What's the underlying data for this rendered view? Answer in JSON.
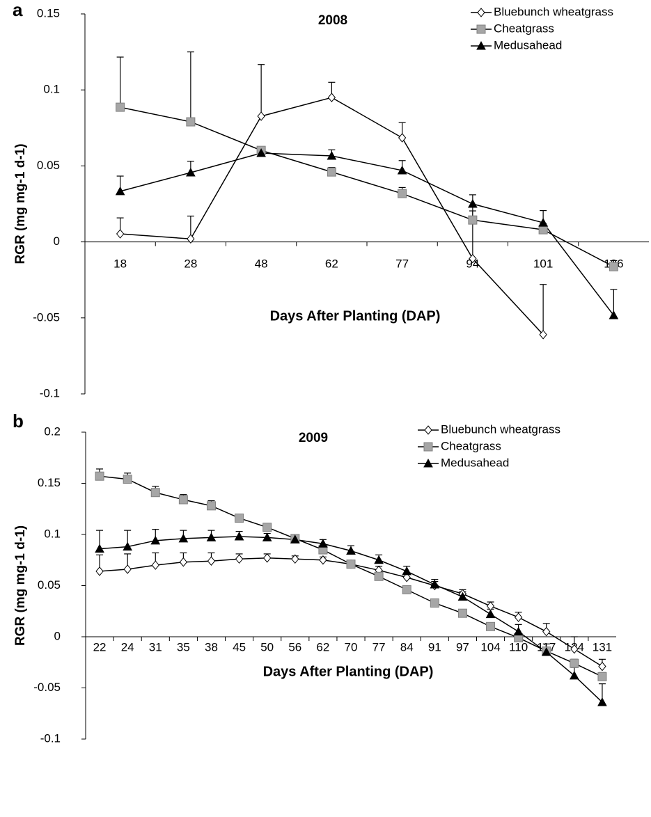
{
  "chart_data": [
    {
      "type": "line",
      "panel": "a",
      "title": "2008",
      "xlabel": "Days After Planting (DAP)",
      "ylabel": "RGR (mg mg-1 d-1)",
      "categories": [
        "18",
        "28",
        "48",
        "62",
        "77",
        "94",
        "101",
        "126"
      ],
      "ylim": [
        -0.1,
        0.15
      ],
      "yticks": [
        -0.1,
        -0.05,
        0,
        0.05,
        0.1,
        0.15
      ],
      "legend": "upper right",
      "series": [
        {
          "name": "Bluebunch wheatgrass",
          "color": "#ffffff",
          "marker": "diamond",
          "values": [
            0.0053,
            0.002,
            0.0827,
            0.095,
            0.0685,
            -0.011,
            -0.061,
            null
          ],
          "errors": [
            0.0105,
            0.015,
            0.034,
            0.01,
            0.01,
            0.034,
            0.033,
            null
          ]
        },
        {
          "name": "Cheatgrass",
          "color": "#a6a6a6",
          "marker": "square",
          "values": [
            0.0886,
            0.079,
            0.0602,
            0.046,
            0.0318,
            0.0144,
            0.008,
            -0.0163
          ],
          "errors": [
            0.033,
            0.046,
            0.002,
            0.003,
            0.004,
            0.006,
            0.004,
            0.004
          ]
        },
        {
          "name": "Medusahead",
          "color": "#000000",
          "marker": "triangle",
          "values": [
            0.0333,
            0.0456,
            0.0584,
            0.0566,
            0.047,
            0.025,
            0.0126,
            -0.0483
          ],
          "errors": [
            0.01,
            0.0075,
            0.002,
            0.004,
            0.0065,
            0.006,
            0.008,
            0.017
          ]
        }
      ]
    },
    {
      "type": "line",
      "panel": "b",
      "title": "2009",
      "xlabel": "Days After Planting (DAP)",
      "ylabel": "RGR (mg mg-1 d-1)",
      "categories": [
        "22",
        "24",
        "31",
        "35",
        "38",
        "45",
        "50",
        "56",
        "62",
        "70",
        "77",
        "84",
        "91",
        "97",
        "104",
        "110",
        "117",
        "124",
        "131"
      ],
      "ylim": [
        -0.1,
        0.2
      ],
      "yticks": [
        -0.1,
        -0.05,
        0,
        0.05,
        0.1,
        0.15,
        0.2
      ],
      "legend": "upper right",
      "series": [
        {
          "name": "Bluebunch wheatgrass",
          "color": "#ffffff",
          "marker": "diamond",
          "values": [
            0.064,
            0.066,
            0.07,
            0.073,
            0.074,
            0.076,
            0.077,
            0.076,
            0.075,
            0.071,
            0.065,
            0.058,
            0.05,
            0.042,
            0.03,
            0.019,
            0.005,
            -0.012,
            -0.029
          ],
          "errors": [
            0.016,
            0.015,
            0.012,
            0.009,
            0.008,
            0.005,
            0.004,
            0.003,
            0.003,
            0.002,
            0.004,
            0.004,
            0.004,
            0.004,
            0.004,
            0.005,
            0.008,
            0.012,
            0.007
          ]
        },
        {
          "name": "Cheatgrass",
          "color": "#a6a6a6",
          "marker": "square",
          "values": [
            0.157,
            0.154,
            0.141,
            0.134,
            0.128,
            0.116,
            0.107,
            0.096,
            0.085,
            0.071,
            0.059,
            0.046,
            0.033,
            0.023,
            0.01,
            -0.001,
            -0.014,
            -0.026,
            -0.039
          ],
          "errors": [
            0.007,
            0.006,
            0.006,
            0.005,
            0.005,
            0.004,
            0.003,
            0.003,
            0.003,
            0.002,
            0.002,
            0.002,
            0.002,
            0.002,
            0.003,
            0.003,
            0.003,
            0.004,
            0.004
          ]
        },
        {
          "name": "Medusahead",
          "color": "#000000",
          "marker": "triangle",
          "values": [
            0.086,
            0.088,
            0.094,
            0.096,
            0.097,
            0.098,
            0.097,
            0.095,
            0.091,
            0.084,
            0.075,
            0.064,
            0.051,
            0.039,
            0.022,
            0.005,
            -0.015,
            -0.038,
            -0.064
          ],
          "errors": [
            0.018,
            0.016,
            0.011,
            0.008,
            0.007,
            0.005,
            0.004,
            0.003,
            0.004,
            0.005,
            0.005,
            0.005,
            0.005,
            0.005,
            0.005,
            0.007,
            0.008,
            0.008,
            0.018
          ]
        }
      ]
    }
  ]
}
